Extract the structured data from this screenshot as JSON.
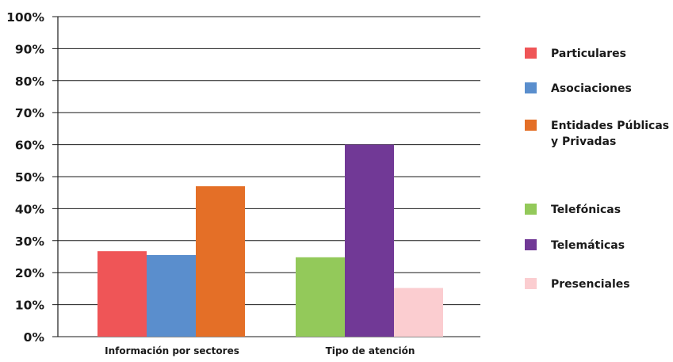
{
  "chart_data": {
    "type": "bar",
    "categories": [
      "Información por sectores",
      "Tipo de atención"
    ],
    "ylim": [
      0,
      100
    ],
    "yticks": [
      "0%",
      "10%",
      "20%",
      "30%",
      "40%",
      "50%",
      "60%",
      "70%",
      "80%",
      "90%",
      "100%"
    ],
    "grid": true,
    "legend_position": "right",
    "series": [
      {
        "name": "Particulares",
        "color": "#ef5557",
        "category": 0,
        "value": 26.7
      },
      {
        "name": "Asociaciones",
        "color": "#5a8ecd",
        "category": 0,
        "value": 25.5
      },
      {
        "name": "Entidades Públicas y Privadas",
        "color": "#e46f27",
        "category": 0,
        "value": 47
      },
      {
        "name": "Telefónicas",
        "color": "#93c95a",
        "category": 1,
        "value": 24.8
      },
      {
        "name": "Telemáticas",
        "color": "#713996",
        "category": 1,
        "value": 60
      },
      {
        "name": "Presenciales",
        "color": "#fbcdd0",
        "category": 1,
        "value": 15.2
      }
    ]
  },
  "legend": {
    "items": [
      {
        "label": "Particulares",
        "color": "#ef5557"
      },
      {
        "label": "Asociaciones",
        "color": "#5a8ecd"
      },
      {
        "label": "Entidades Públicas y Privadas",
        "color": "#e46f27"
      },
      {
        "label": "Telefónicas",
        "color": "#93c95a"
      },
      {
        "label": "Telemáticas",
        "color": "#713996"
      },
      {
        "label": "Presenciales",
        "color": "#fbcdd0"
      }
    ]
  }
}
